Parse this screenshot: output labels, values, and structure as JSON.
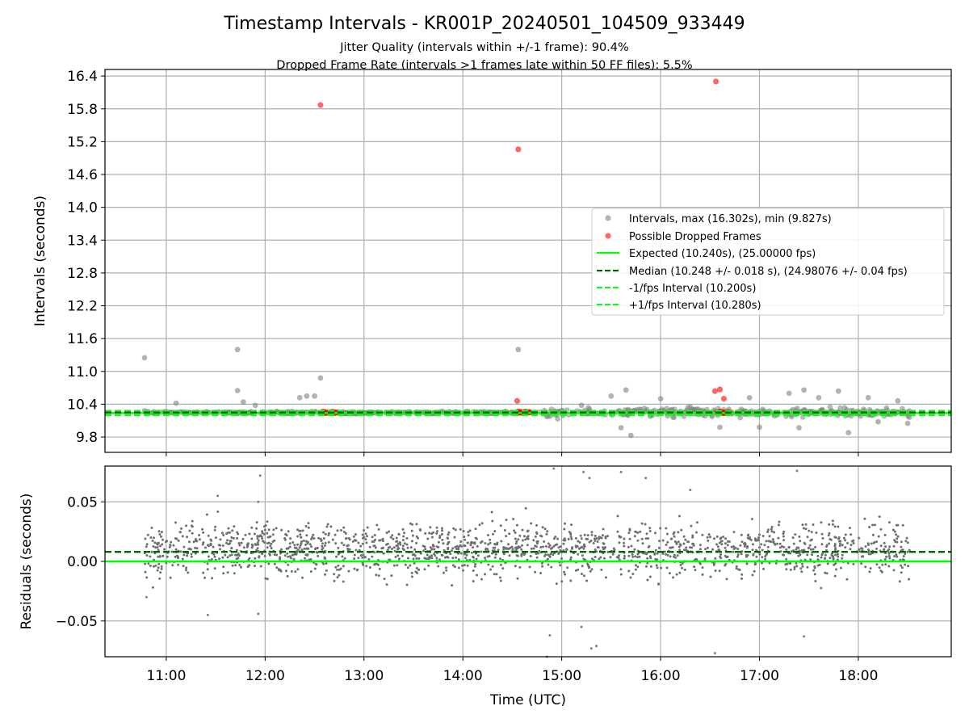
{
  "chart_data": [
    {
      "type": "scatter",
      "title": "Timestamp Intervals - KR001P_20240501_104509_933449",
      "subtitle_lines": [
        "Jitter Quality (intervals within +/-1 frame): 90.4%",
        "Dropped Frame Rate (intervals >1 frames late within 50 FF files): 5.5%"
      ],
      "xlabel": "",
      "ylabel": "Intervals (seconds)",
      "x_range_hours": [
        10.38,
        18.94
      ],
      "ylim": [
        9.52,
        16.52
      ],
      "yticks": [
        9.8,
        10.4,
        11.0,
        11.6,
        12.2,
        12.8,
        13.4,
        14.0,
        14.6,
        15.2,
        15.8,
        16.4
      ],
      "ytick_labels": [
        "9.8",
        "10.4",
        "11.0",
        "11.6",
        "12.2",
        "12.8",
        "13.4",
        "14.0",
        "14.6",
        "15.2",
        "15.8",
        "16.4"
      ],
      "xticks_hours": [
        11,
        12,
        13,
        14,
        15,
        16,
        17,
        18
      ],
      "grid": true,
      "legend_position": "center-right",
      "legend": [
        "Intervals, max (16.302s), min (9.827s)",
        "Possible Dropped Frames",
        "Expected (10.240s), (25.00000 fps)",
        "Median (10.248 +/- 0.018 s), (24.98076 +/- 0.04 fps)",
        "-1/fps Interval (10.200s)",
        "+1/fps Interval (10.280s)"
      ],
      "reference_lines": {
        "expected": 10.24,
        "median": 10.248,
        "minus_one_fps": 10.2,
        "plus_one_fps": 10.28
      },
      "series": [
        {
          "name": "Intervals, max (16.302s), min (9.827s)",
          "color": "#808080",
          "x_hours": [
            10.78,
            11.72,
            12.56,
            14.56,
            12.42,
            11.72,
            10.78,
            11.1,
            11.78,
            12.35,
            12.5,
            11.9,
            15.2,
            15.5,
            15.65,
            16.0,
            16.3,
            16.9,
            17.3,
            17.45,
            17.6,
            17.8,
            18.1,
            18.4,
            15.6,
            15.7,
            16.6,
            17.0,
            17.4,
            17.9,
            18.2,
            18.5
          ],
          "y": [
            11.25,
            11.4,
            10.88,
            11.4,
            10.55,
            10.65,
            10.28,
            10.42,
            10.44,
            10.52,
            10.55,
            10.38,
            10.38,
            10.55,
            10.66,
            10.5,
            10.35,
            10.52,
            10.6,
            10.66,
            10.52,
            10.64,
            10.52,
            10.46,
            9.97,
            9.83,
            9.98,
            9.98,
            9.97,
            9.88,
            10.08,
            10.05
          ]
        },
        {
          "name": "Possible Dropped Frames",
          "color": "#ff0000",
          "x_hours": [
            12.56,
            14.56,
            16.56,
            14.55,
            16.55,
            16.6,
            16.64
          ],
          "y": [
            15.87,
            15.06,
            16.3,
            10.46,
            10.64,
            10.67,
            10.5
          ]
        }
      ]
    },
    {
      "type": "scatter",
      "title": "",
      "xlabel": "Time (UTC)",
      "ylabel": "Residuals (seconds)",
      "ylim": [
        -0.08,
        0.08
      ],
      "yticks": [
        -0.05,
        0.0,
        0.05
      ],
      "ytick_labels": [
        "−0.05",
        "0.00",
        "0.05"
      ],
      "xticks_hours": [
        11,
        12,
        13,
        14,
        15,
        16,
        17,
        18
      ],
      "xtick_labels": [
        "11:00",
        "12:00",
        "13:00",
        "14:00",
        "15:00",
        "16:00",
        "17:00",
        "18:00"
      ],
      "grid": true,
      "reference_lines": {
        "zero": 0.0,
        "median_offset": 0.008
      },
      "series": [
        {
          "name": "",
          "color": "#808080",
          "x_hours": [
            10.8,
            11.42,
            11.52,
            11.95,
            11.93,
            14.92,
            15.22,
            15.28,
            15.6,
            15.85,
            16.3,
            17.38,
            14.88,
            15.3,
            15.35,
            16.55,
            17.45,
            14.85,
            11.93,
            15.2
          ],
          "y": [
            -0.03,
            -0.045,
            0.055,
            0.072,
            -0.044,
            0.078,
            0.075,
            0.07,
            0.075,
            0.07,
            0.06,
            0.076,
            -0.062,
            -0.073,
            -0.071,
            -0.077,
            -0.063,
            -0.08,
            0.05,
            -0.055
          ]
        }
      ]
    }
  ]
}
